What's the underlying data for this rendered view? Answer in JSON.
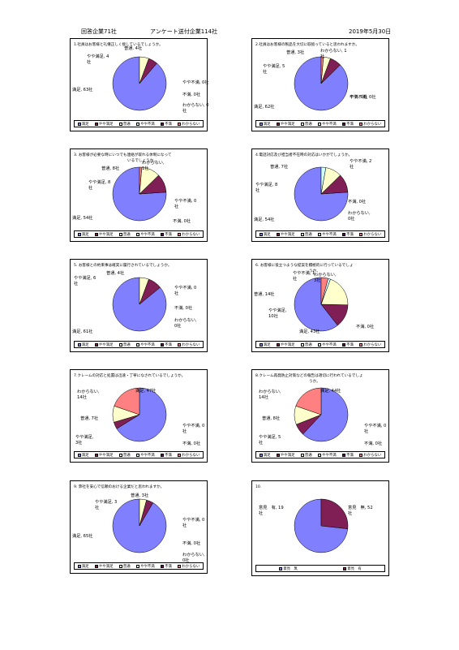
{
  "header": {
    "left": "回答企業71社",
    "center": "アンケート送付企業114社",
    "right": "2019年5月30日"
  },
  "colors": {
    "満足": "#8080ff",
    "やや満足": "#7f1f55",
    "普通": "#ffffcc",
    "やや不満": "#ccffff",
    "不満": "#640064",
    "わからない": "#ff8080",
    "意見　無": "#8080ff",
    "意見　有": "#7f1f55"
  },
  "legend6": [
    "満足",
    "やや満足",
    "普通",
    "やや不満",
    "不満",
    "わからない"
  ],
  "legend2": [
    "意見　無",
    "意見　有"
  ],
  "chart_data": [
    {
      "type": "pie",
      "title": "1.社員はお客様と礼儀正しく接しているでしょうか。",
      "categories": [
        "満足",
        "やや満足",
        "普通",
        "やや不満",
        "不満",
        "わからない"
      ],
      "values": [
        63,
        4,
        4,
        0,
        0,
        0
      ],
      "labels": [
        "満足, 63社",
        "やや満足, 4\n社",
        "普通, 4社",
        "やや不満, 0社",
        "不満, 0社",
        "わからない, 0\n社"
      ]
    },
    {
      "type": "pie",
      "title": "2.社員はお客様の製品を大切に取扱っていると思われますか。",
      "categories": [
        "満足",
        "やや満足",
        "普通",
        "やや不満",
        "不満",
        "わからない"
      ],
      "values": [
        62,
        5,
        3,
        0,
        0,
        1
      ],
      "labels": [
        "満足, 62社",
        "やや満足, 5\n社",
        "普通, 3社",
        "やや不満, 0社",
        "不満, 0社",
        "わからない, 1\n社"
      ]
    },
    {
      "type": "pie",
      "title": "3. お客様が必要な時にいつでも連絡が取れる体制になって",
      "title2": "いるでしょうか。",
      "categories": [
        "満足",
        "やや満足",
        "普通",
        "やや不満",
        "不満",
        "わからない"
      ],
      "values": [
        54,
        8,
        8,
        0,
        0,
        1
      ],
      "labels": [
        "満足, 54社",
        "やや満足, 8\n社",
        "普通, 8社",
        "やや不満, 0\n社",
        "不満, 0社",
        "わからない,\n1社"
      ]
    },
    {
      "type": "pie",
      "title": "4.電話対応及び担当者不在時の対応はいかがでしょうか。",
      "categories": [
        "満足",
        "やや満足",
        "普通",
        "やや不満",
        "不満",
        "わからない"
      ],
      "values": [
        54,
        8,
        7,
        2,
        0,
        0
      ],
      "labels": [
        "満足, 54社",
        "やや満足, 8\n社",
        "普通, 7社",
        "やや不満, 2\n社",
        "不満, 0社",
        "わからない,\n0社"
      ]
    },
    {
      "type": "pie",
      "title": "5. お客様との約束事は確実に履行されているでしょうか。",
      "categories": [
        "満足",
        "やや満足",
        "普通",
        "やや不満",
        "不満",
        "わからない"
      ],
      "values": [
        61,
        6,
        4,
        0,
        0,
        0
      ],
      "labels": [
        "満足, 61社",
        "やや満足, 6\n社",
        "普通, 4社",
        "やや不満, 0\n社",
        "不満, 0社",
        "わからない,\n0社"
      ]
    },
    {
      "type": "pie",
      "title": "6. お客様に役立つような提案を積極的に行っているでしょ",
      "title2": "うか。",
      "categories": [
        "満足",
        "やや満足",
        "普通",
        "やや不満",
        "不満",
        "わからない"
      ],
      "values": [
        43,
        10,
        14,
        1,
        0,
        3
      ],
      "labels": [
        "満足, 43社",
        "やや満足,\n10社",
        "普通, 14社",
        "やや不満, 1\n社",
        "不満, 0社",
        "わからない,\n3社"
      ]
    },
    {
      "type": "pie",
      "title": "7.クレームの対応と処置は迅速・丁寧になされているでしょうか。",
      "categories": [
        "満足",
        "やや満足",
        "普通",
        "やや不満",
        "不満",
        "わからない"
      ],
      "values": [
        47,
        3,
        7,
        0,
        0,
        14
      ],
      "labels": [
        "満足, 47社",
        "やや満足,\n3社",
        "普通, 7社",
        "やや不満, 0\n社",
        "不満, 0社",
        "わからない,\n14社"
      ]
    },
    {
      "type": "pie",
      "title": "8.クレーム再発防止対策などの報告は適切に行われているでしょ",
      "title2": "うか。",
      "categories": [
        "満足",
        "やや満足",
        "普通",
        "やや不満",
        "不満",
        "わからない"
      ],
      "values": [
        44,
        5,
        8,
        0,
        0,
        14
      ],
      "labels": [
        "満足, 44社",
        "やや満足, 5\n社",
        "普通, 8社",
        "やや不満, 0\n社",
        "不満, 0社",
        "わからない,\n14社"
      ]
    },
    {
      "type": "pie",
      "title": "9. 弊社を安心で信頼のおける企業だと思われますか。",
      "categories": [
        "満足",
        "やや満足",
        "普通",
        "やや不満",
        "不満",
        "わからない"
      ],
      "values": [
        65,
        3,
        3,
        0,
        0,
        0
      ],
      "labels": [
        "満足, 65社",
        "やや満足, 3\n社",
        "普通, 3社",
        "やや不満, 0\n社",
        "不満, 0社",
        "わからない,\n0社"
      ]
    },
    {
      "type": "pie",
      "title": "10.",
      "categories": [
        "意見　無",
        "意見　有"
      ],
      "values": [
        52,
        19
      ],
      "labels": [
        "意見　無, 52\n社",
        "意見　有, 19\n社"
      ]
    }
  ]
}
